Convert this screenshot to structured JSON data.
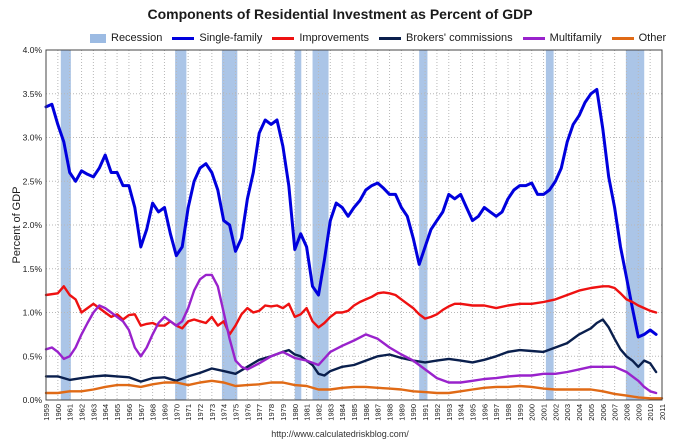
{
  "chart_data": {
    "type": "line",
    "title": "Components of Residential Investment as Percent of GDP",
    "ylabel": "Percent of GDP",
    "xlabel": "",
    "xlim": [
      1959,
      2011
    ],
    "ylim": [
      0,
      4
    ],
    "yticks": [
      "0.0%",
      "0.5%",
      "1.0%",
      "1.5%",
      "2.0%",
      "2.5%",
      "3.0%",
      "3.5%",
      "4.0%"
    ],
    "xticks": [
      "1959",
      "1960",
      "1961",
      "1962",
      "1963",
      "1964",
      "1965",
      "1966",
      "1967",
      "1968",
      "1969",
      "1970",
      "1971",
      "1972",
      "1973",
      "1974",
      "1975",
      "1976",
      "1977",
      "1978",
      "1979",
      "1980",
      "1981",
      "1982",
      "1983",
      "1984",
      "1985",
      "1986",
      "1987",
      "1988",
      "1989",
      "1990",
      "1991",
      "1992",
      "1993",
      "1994",
      "1995",
      "1996",
      "1997",
      "1998",
      "1999",
      "2000",
      "2001",
      "2002",
      "2003",
      "2004",
      "2005",
      "2006",
      "2007",
      "2008",
      "2009",
      "2010",
      "2011"
    ],
    "grid": true,
    "legend_position": "top",
    "recession": {
      "name": "Recession",
      "color": "#9cbbe3",
      "periods": [
        [
          1960.25,
          1961.1
        ],
        [
          1969.9,
          1970.85
        ],
        [
          1973.85,
          1975.15
        ],
        [
          1980.0,
          1980.55
        ],
        [
          1981.5,
          1982.85
        ],
        [
          1990.5,
          1991.2
        ],
        [
          2001.2,
          2001.85
        ],
        [
          2007.95,
          2009.5
        ]
      ]
    },
    "series": [
      {
        "name": "Single-family",
        "color": "#0000dd",
        "x": [
          1959,
          1959.5,
          1960,
          1960.5,
          1961,
          1961.5,
          1962,
          1962.5,
          1963,
          1963.5,
          1964,
          1964.5,
          1965,
          1965.5,
          1966,
          1966.5,
          1967,
          1967.5,
          1968,
          1968.5,
          1969,
          1969.5,
          1970,
          1970.5,
          1971,
          1971.5,
          1972,
          1972.5,
          1973,
          1973.5,
          1974,
          1974.5,
          1975,
          1975.5,
          1976,
          1976.5,
          1977,
          1977.5,
          1978,
          1978.5,
          1979,
          1979.5,
          1980,
          1980.5,
          1981,
          1981.5,
          1982,
          1982.5,
          1983,
          1983.5,
          1984,
          1984.5,
          1985,
          1985.5,
          1986,
          1986.5,
          1987,
          1987.5,
          1988,
          1988.5,
          1989,
          1989.5,
          1990,
          1990.5,
          1991,
          1991.5,
          1992,
          1992.5,
          1993,
          1993.5,
          1994,
          1994.5,
          1995,
          1995.5,
          1996,
          1996.5,
          1997,
          1997.5,
          1998,
          1998.5,
          1999,
          1999.5,
          2000,
          2000.5,
          2001,
          2001.5,
          2002,
          2002.5,
          2003,
          2003.5,
          2004,
          2004.5,
          2005,
          2005.5,
          2006,
          2006.5,
          2007,
          2007.5,
          2008,
          2008.5,
          2009,
          2009.5,
          2010,
          2010.5
        ],
        "values": [
          3.35,
          3.38,
          3.15,
          2.95,
          2.6,
          2.5,
          2.62,
          2.58,
          2.55,
          2.65,
          2.8,
          2.6,
          2.6,
          2.45,
          2.45,
          2.2,
          1.75,
          1.95,
          2.25,
          2.15,
          2.2,
          1.9,
          1.65,
          1.75,
          2.2,
          2.5,
          2.65,
          2.7,
          2.6,
          2.4,
          2.05,
          2.0,
          1.7,
          1.85,
          2.3,
          2.6,
          3.05,
          3.2,
          3.15,
          3.2,
          2.9,
          2.45,
          1.72,
          1.9,
          1.75,
          1.3,
          1.2,
          1.6,
          2.05,
          2.25,
          2.2,
          2.1,
          2.2,
          2.28,
          2.4,
          2.45,
          2.48,
          2.42,
          2.35,
          2.35,
          2.2,
          2.1,
          1.85,
          1.55,
          1.75,
          1.95,
          2.05,
          2.15,
          2.35,
          2.3,
          2.35,
          2.2,
          2.05,
          2.1,
          2.2,
          2.15,
          2.1,
          2.15,
          2.3,
          2.4,
          2.45,
          2.45,
          2.48,
          2.35,
          2.35,
          2.4,
          2.5,
          2.65,
          2.95,
          3.15,
          3.25,
          3.4,
          3.5,
          3.55,
          3.1,
          2.55,
          2.2,
          1.75,
          1.4,
          1.05,
          0.72,
          0.75,
          0.8,
          0.75
        ]
      },
      {
        "name": "Improvements",
        "color": "#ee1111",
        "x": [
          1959,
          1960,
          1960.5,
          1961,
          1961.5,
          1962,
          1962.5,
          1963,
          1963.5,
          1964,
          1964.5,
          1965,
          1965.5,
          1966,
          1966.5,
          1967,
          1967.5,
          1968,
          1968.5,
          1969,
          1969.5,
          1970,
          1970.5,
          1971,
          1971.5,
          1972,
          1972.5,
          1973,
          1973.5,
          1974,
          1974.5,
          1975,
          1975.5,
          1976,
          1976.5,
          1977,
          1977.5,
          1978,
          1978.5,
          1979,
          1979.5,
          1980,
          1980.5,
          1981,
          1981.5,
          1982,
          1982.5,
          1983,
          1983.5,
          1984,
          1984.5,
          1985,
          1985.5,
          1986,
          1986.5,
          1987,
          1987.5,
          1988,
          1988.5,
          1989,
          1989.5,
          1990,
          1990.5,
          1991,
          1991.5,
          1992,
          1992.5,
          1993,
          1993.5,
          1994,
          1995,
          1996,
          1997,
          1998,
          1999,
          2000,
          2001,
          2002,
          2003,
          2004,
          2005,
          2006,
          2006.5,
          2007,
          2007.5,
          2008,
          2008.5,
          2009,
          2009.5,
          2010,
          2010.5
        ],
        "values": [
          1.2,
          1.22,
          1.3,
          1.2,
          1.15,
          1.0,
          1.05,
          1.1,
          1.05,
          1.0,
          0.95,
          0.98,
          0.92,
          0.97,
          0.98,
          0.85,
          0.87,
          0.88,
          0.85,
          0.85,
          0.9,
          0.85,
          0.82,
          0.9,
          0.92,
          0.9,
          0.88,
          0.95,
          0.85,
          0.9,
          0.75,
          0.85,
          0.98,
          1.05,
          1.0,
          1.02,
          1.08,
          1.07,
          1.08,
          1.05,
          1.1,
          0.95,
          0.98,
          1.05,
          0.9,
          0.83,
          0.88,
          0.95,
          1.0,
          1.0,
          1.02,
          1.08,
          1.12,
          1.15,
          1.18,
          1.22,
          1.23,
          1.22,
          1.2,
          1.15,
          1.1,
          1.05,
          0.98,
          0.93,
          0.95,
          0.98,
          1.03,
          1.07,
          1.1,
          1.1,
          1.08,
          1.08,
          1.05,
          1.08,
          1.1,
          1.1,
          1.12,
          1.15,
          1.2,
          1.25,
          1.28,
          1.3,
          1.3,
          1.28,
          1.22,
          1.15,
          1.12,
          1.08,
          1.05,
          1.02,
          1.0
        ]
      },
      {
        "name": "Brokers' commissions",
        "color": "#0a1f4d",
        "x": [
          1959,
          1960,
          1961,
          1962,
          1963,
          1964,
          1965,
          1966,
          1967,
          1968,
          1969,
          1970,
          1971,
          1972,
          1973,
          1974,
          1975,
          1976,
          1977,
          1978,
          1979,
          1979.5,
          1980,
          1980.5,
          1981,
          1981.5,
          1982,
          1982.5,
          1983,
          1984,
          1985,
          1986,
          1987,
          1988,
          1989,
          1990,
          1991,
          1992,
          1993,
          1994,
          1995,
          1996,
          1997,
          1998,
          1999,
          2000,
          2001,
          2002,
          2003,
          2004,
          2005,
          2005.5,
          2006,
          2006.5,
          2007,
          2007.5,
          2008,
          2008.5,
          2009,
          2009.5,
          2010,
          2010.5
        ],
        "values": [
          0.27,
          0.27,
          0.23,
          0.25,
          0.27,
          0.28,
          0.27,
          0.26,
          0.21,
          0.25,
          0.26,
          0.22,
          0.27,
          0.31,
          0.36,
          0.33,
          0.3,
          0.38,
          0.46,
          0.5,
          0.55,
          0.57,
          0.52,
          0.5,
          0.45,
          0.4,
          0.3,
          0.28,
          0.33,
          0.38,
          0.4,
          0.45,
          0.5,
          0.52,
          0.48,
          0.45,
          0.43,
          0.45,
          0.47,
          0.45,
          0.43,
          0.46,
          0.5,
          0.55,
          0.57,
          0.56,
          0.55,
          0.6,
          0.65,
          0.75,
          0.82,
          0.88,
          0.92,
          0.83,
          0.7,
          0.58,
          0.5,
          0.45,
          0.38,
          0.45,
          0.42,
          0.32
        ]
      },
      {
        "name": "Multifamily",
        "color": "#9922cc",
        "x": [
          1959,
          1959.5,
          1960,
          1960.5,
          1961,
          1961.5,
          1962,
          1962.5,
          1963,
          1963.5,
          1964,
          1964.5,
          1965,
          1965.5,
          1966,
          1966.5,
          1967,
          1967.5,
          1968,
          1968.5,
          1969,
          1969.5,
          1970,
          1970.5,
          1971,
          1971.5,
          1972,
          1972.5,
          1973,
          1973.5,
          1974,
          1974.5,
          1975,
          1975.5,
          1976,
          1977,
          1978,
          1979,
          1980,
          1981,
          1982,
          1983,
          1984,
          1985,
          1986,
          1987,
          1988,
          1989,
          1990,
          1991,
          1992,
          1993,
          1994,
          1995,
          1996,
          1997,
          1998,
          1999,
          2000,
          2001,
          2002,
          2003,
          2004,
          2005,
          2006,
          2007,
          2008,
          2009,
          2009.5,
          2010,
          2010.5
        ],
        "values": [
          0.58,
          0.6,
          0.55,
          0.47,
          0.5,
          0.6,
          0.75,
          0.88,
          1.0,
          1.08,
          1.05,
          1.0,
          0.95,
          0.9,
          0.8,
          0.6,
          0.5,
          0.6,
          0.75,
          0.88,
          0.95,
          0.9,
          0.85,
          0.9,
          1.05,
          1.25,
          1.38,
          1.43,
          1.43,
          1.3,
          1.0,
          0.7,
          0.45,
          0.38,
          0.35,
          0.42,
          0.5,
          0.55,
          0.48,
          0.45,
          0.4,
          0.55,
          0.62,
          0.68,
          0.75,
          0.7,
          0.6,
          0.52,
          0.45,
          0.35,
          0.25,
          0.2,
          0.2,
          0.22,
          0.24,
          0.25,
          0.27,
          0.28,
          0.28,
          0.3,
          0.3,
          0.32,
          0.35,
          0.38,
          0.38,
          0.38,
          0.32,
          0.22,
          0.15,
          0.1,
          0.08
        ]
      },
      {
        "name": "Other",
        "color": "#e06a16",
        "x": [
          1959,
          1960,
          1961,
          1962,
          1963,
          1964,
          1965,
          1966,
          1967,
          1968,
          1969,
          1970,
          1971,
          1972,
          1973,
          1974,
          1975,
          1976,
          1977,
          1978,
          1979,
          1980,
          1981,
          1982,
          1983,
          1984,
          1985,
          1986,
          1987,
          1988,
          1989,
          1990,
          1991,
          1992,
          1993,
          1994,
          1995,
          1996,
          1997,
          1998,
          1999,
          2000,
          2001,
          2002,
          2003,
          2004,
          2005,
          2006,
          2007,
          2008,
          2009,
          2010,
          2011
        ],
        "values": [
          0.08,
          0.08,
          0.1,
          0.1,
          0.12,
          0.15,
          0.17,
          0.17,
          0.15,
          0.18,
          0.2,
          0.2,
          0.17,
          0.2,
          0.22,
          0.2,
          0.16,
          0.17,
          0.18,
          0.2,
          0.2,
          0.17,
          0.16,
          0.12,
          0.12,
          0.14,
          0.15,
          0.15,
          0.14,
          0.13,
          0.12,
          0.1,
          0.09,
          0.08,
          0.08,
          0.1,
          0.12,
          0.14,
          0.15,
          0.15,
          0.16,
          0.15,
          0.13,
          0.12,
          0.12,
          0.12,
          0.12,
          0.1,
          0.07,
          0.05,
          0.03,
          0.02,
          0.02
        ]
      }
    ]
  },
  "source_text": "http://www.calculatedriskblog.com/"
}
